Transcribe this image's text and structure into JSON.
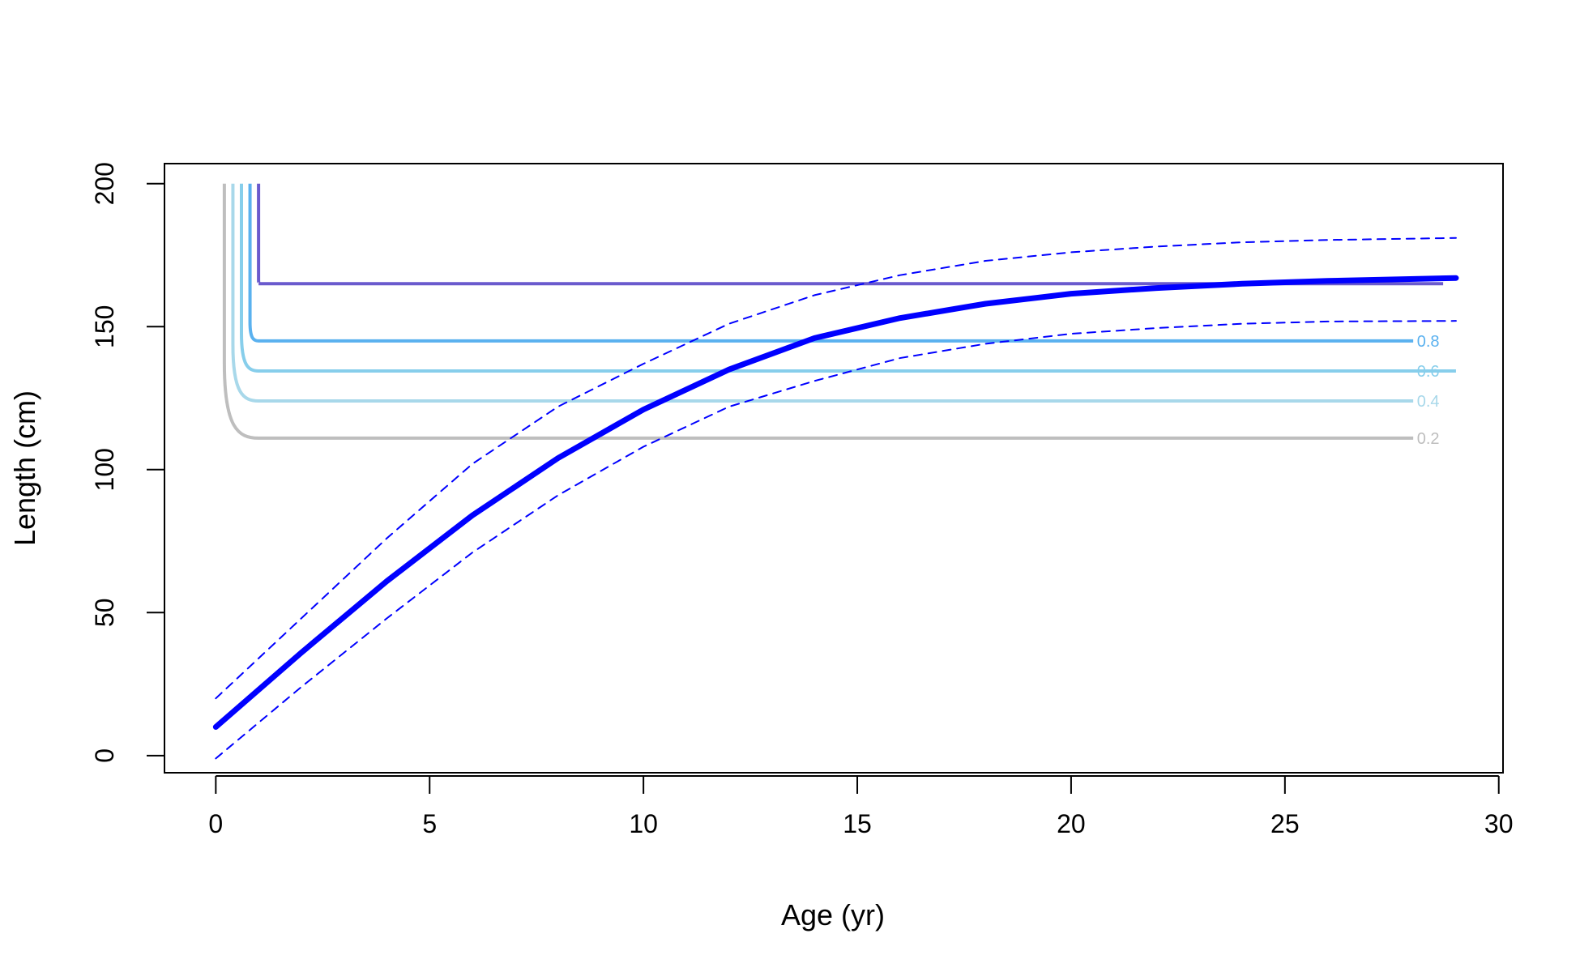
{
  "chart_data": {
    "type": "line",
    "title": "",
    "xlabel": "Age (yr)",
    "ylabel": "Length (cm)",
    "xlim": [
      -1.2,
      30.1
    ],
    "ylim": [
      -6,
      207
    ],
    "xticks": [
      0,
      5,
      10,
      15,
      20,
      25,
      30
    ],
    "yticks": [
      0,
      50,
      100,
      150,
      200
    ],
    "xtick_labels": [
      "0",
      "5",
      "10",
      "15",
      "20",
      "25",
      "30"
    ],
    "ytick_labels": [
      "0",
      "50",
      "100",
      "150",
      "200"
    ],
    "grid": false,
    "legend": "none",
    "series": [
      {
        "style": "solid-thick",
        "color": "#0000ff",
        "x": [
          0,
          2,
          4,
          6,
          8,
          10,
          12,
          14,
          16,
          18,
          20,
          22,
          24,
          26,
          29
        ],
        "y": [
          10,
          36,
          61,
          84,
          104,
          121,
          135,
          146,
          153,
          158,
          161.5,
          163.5,
          165,
          166,
          167
        ]
      },
      {
        "style": "dashed",
        "color": "#0000ff",
        "x": [
          0,
          2,
          4,
          6,
          8,
          10,
          12,
          14,
          16,
          18,
          20,
          22,
          24,
          26,
          29
        ],
        "y": [
          20,
          48,
          76,
          102,
          122,
          137,
          151,
          161,
          168,
          173,
          176,
          178,
          179.5,
          180.3,
          181
        ]
      },
      {
        "style": "dashed",
        "color": "#0000ff",
        "x": [
          0,
          2,
          4,
          6,
          8,
          10,
          12,
          14,
          16,
          18,
          20,
          22,
          24,
          26,
          29
        ],
        "y": [
          -1,
          24,
          48,
          71,
          91,
          108,
          122,
          131,
          139,
          144,
          147.5,
          149.5,
          151,
          151.8,
          152
        ]
      }
    ],
    "contours": [
      {
        "label": "0.2",
        "color": "#bebebe",
        "x_start": 0.2,
        "level": 111,
        "x_end": 28
      },
      {
        "label": "0.4",
        "color": "#a8d8ea",
        "x_start": 0.4,
        "level": 124,
        "x_end": 28
      },
      {
        "label": "0.6",
        "color": "#87ceeb",
        "x_start": 0.6,
        "level": 134.5,
        "x_end": 29
      },
      {
        "label": "0.8",
        "color": "#5ab1ef",
        "x_start": 0.8,
        "level": 145,
        "x_end": 28
      },
      {
        "label": "",
        "color": "#6a5acd",
        "x_start": 1.0,
        "level": 165,
        "x_end": 28.7
      }
    ]
  }
}
